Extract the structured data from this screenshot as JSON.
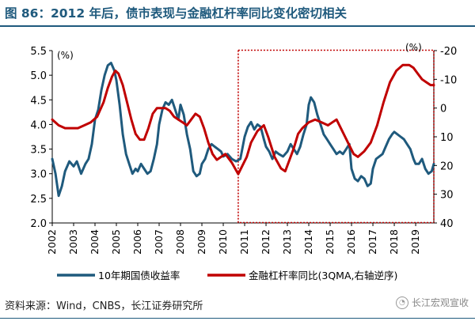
{
  "title": "图 86：2012 年后，债市表现与金融杠杆率同比变化密切相关",
  "source": "资料来源：Wind，CNBS，长江证券研究所",
  "watermark": "长江宏观宣收",
  "colors": {
    "blue": "#1f5a7d",
    "red": "#c00000",
    "title": "#1f5a7d",
    "highlight": "#c00000"
  },
  "chart_data": {
    "type": "line",
    "left_unit": "(%)",
    "right_unit": "(%)",
    "ylim_left": [
      2.0,
      5.5
    ],
    "yticks_left": [
      "2.0",
      "2.5",
      "3.0",
      "3.5",
      "4.0",
      "4.5",
      "5.0",
      "5.5"
    ],
    "ylim_right_reversed": [
      -20,
      40
    ],
    "yticks_right": [
      "-20",
      "-10",
      "0",
      "10",
      "20",
      "30",
      "40"
    ],
    "xlim": [
      2002.0,
      2019.85
    ],
    "xtick_labels": [
      "2002",
      "2003",
      "2004",
      "2005",
      "2006",
      "2007",
      "2008",
      "2009",
      "2010",
      "2011",
      "2012",
      "2013",
      "2014",
      "2015",
      "2016",
      "2017",
      "2018",
      "2019"
    ],
    "highlight_box_x": [
      2010.7,
      2019.85
    ],
    "series": [
      {
        "name": "10年期国债收益率",
        "axis": "left",
        "x": [
          2002.0,
          2002.15,
          2002.3,
          2002.45,
          2002.6,
          2002.8,
          2003.0,
          2003.15,
          2003.35,
          2003.55,
          2003.7,
          2003.85,
          2004.0,
          2004.15,
          2004.3,
          2004.45,
          2004.6,
          2004.75,
          2004.9,
          2005.0,
          2005.15,
          2005.3,
          2005.45,
          2005.6,
          2005.75,
          2005.9,
          2006.0,
          2006.15,
          2006.3,
          2006.45,
          2006.6,
          2006.75,
          2006.9,
          2007.0,
          2007.15,
          2007.3,
          2007.45,
          2007.6,
          2007.75,
          2007.9,
          2008.0,
          2008.15,
          2008.3,
          2008.45,
          2008.6,
          2008.75,
          2008.9,
          2009.0,
          2009.15,
          2009.3,
          2009.45,
          2009.6,
          2009.75,
          2009.9,
          2010.0,
          2010.2,
          2010.4,
          2010.6,
          2010.8,
          2011.0,
          2011.15,
          2011.3,
          2011.45,
          2011.6,
          2011.75,
          2011.9,
          2012.0,
          2012.15,
          2012.3,
          2012.45,
          2012.6,
          2012.8,
          2013.0,
          2013.15,
          2013.3,
          2013.45,
          2013.6,
          2013.75,
          2013.9,
          2014.0,
          2014.1,
          2014.25,
          2014.4,
          2014.55,
          2014.7,
          2014.85,
          2015.0,
          2015.15,
          2015.3,
          2015.45,
          2015.6,
          2015.75,
          2015.9,
          2016.0,
          2016.15,
          2016.3,
          2016.45,
          2016.6,
          2016.75,
          2016.9,
          2017.0,
          2017.15,
          2017.3,
          2017.45,
          2017.6,
          2017.75,
          2017.9,
          2018.0,
          2018.15,
          2018.3,
          2018.45,
          2018.6,
          2018.75,
          2018.9,
          2019.0,
          2019.15,
          2019.3,
          2019.45,
          2019.6,
          2019.75,
          2019.85
        ],
        "values": [
          3.3,
          3.0,
          2.55,
          2.75,
          3.05,
          3.25,
          3.15,
          3.25,
          3.0,
          3.2,
          3.3,
          3.6,
          4.1,
          4.3,
          4.7,
          5.0,
          5.2,
          5.25,
          5.1,
          4.9,
          4.4,
          3.8,
          3.4,
          3.2,
          3.0,
          3.1,
          3.05,
          3.2,
          3.1,
          3.0,
          3.05,
          3.3,
          3.6,
          4.0,
          4.3,
          4.45,
          4.4,
          4.5,
          4.3,
          4.1,
          4.4,
          4.2,
          3.8,
          3.5,
          3.05,
          2.95,
          3.0,
          3.2,
          3.3,
          3.5,
          3.6,
          3.55,
          3.5,
          3.45,
          3.35,
          3.4,
          3.3,
          3.25,
          3.3,
          3.75,
          3.95,
          4.05,
          3.9,
          4.0,
          3.95,
          3.7,
          3.55,
          3.45,
          3.3,
          3.45,
          3.4,
          3.35,
          3.45,
          3.6,
          3.5,
          3.4,
          3.55,
          3.8,
          4.0,
          4.4,
          4.55,
          4.45,
          4.2,
          4.0,
          3.8,
          3.7,
          3.6,
          3.5,
          3.4,
          3.45,
          3.4,
          3.5,
          3.6,
          3.1,
          2.9,
          2.85,
          2.95,
          2.9,
          2.75,
          2.8,
          3.1,
          3.3,
          3.35,
          3.4,
          3.55,
          3.7,
          3.8,
          3.85,
          3.8,
          3.75,
          3.7,
          3.6,
          3.5,
          3.3,
          3.2,
          3.2,
          3.3,
          3.1,
          3.0,
          3.05,
          3.2
        ]
      },
      {
        "name": "金融杠杆率同比(3QMA,右轴逆序)",
        "axis": "right",
        "x": [
          2002.0,
          2002.3,
          2002.6,
          2002.9,
          2003.2,
          2003.5,
          2003.8,
          2004.1,
          2004.4,
          2004.6,
          2004.8,
          2004.95,
          2005.1,
          2005.3,
          2005.5,
          2005.7,
          2005.9,
          2006.1,
          2006.3,
          2006.5,
          2006.7,
          2006.9,
          2007.1,
          2007.3,
          2007.5,
          2007.7,
          2007.9,
          2008.1,
          2008.3,
          2008.5,
          2008.7,
          2008.9,
          2009.1,
          2009.3,
          2009.5,
          2009.7,
          2009.9,
          2010.1,
          2010.4,
          2010.7,
          2010.9,
          2011.1,
          2011.3,
          2011.6,
          2011.9,
          2012.1,
          2012.4,
          2012.7,
          2012.9,
          2013.1,
          2013.3,
          2013.5,
          2013.7,
          2014.0,
          2014.3,
          2014.6,
          2014.9,
          2015.1,
          2015.3,
          2015.5,
          2015.7,
          2015.9,
          2016.1,
          2016.3,
          2016.6,
          2016.9,
          2017.2,
          2017.5,
          2017.8,
          2018.1,
          2018.4,
          2018.7,
          2018.9,
          2019.1,
          2019.3,
          2019.5,
          2019.7,
          2019.85
        ],
        "values": [
          4,
          6,
          7,
          7,
          7,
          6,
          5,
          3,
          -2,
          -7,
          -11,
          -13,
          -12,
          -8,
          -2,
          4,
          9,
          11,
          11,
          7,
          2,
          0,
          0,
          0,
          1,
          3,
          4,
          5,
          6,
          4,
          2,
          3,
          7,
          12,
          16,
          18,
          17,
          16,
          19,
          23,
          20,
          17,
          12,
          8,
          6,
          10,
          17,
          21,
          22,
          18,
          14,
          9,
          7,
          5,
          4,
          5,
          6,
          5,
          4,
          7,
          10,
          13,
          16,
          17,
          15,
          12,
          6,
          -2,
          -9,
          -13,
          -15,
          -15,
          -14,
          -12,
          -10,
          -9,
          -8,
          -8
        ]
      }
    ]
  },
  "legend": {
    "blue_label": "10年期国债收益率",
    "red_label": "金融杠杆率同比(3QMA,右轴逆序)"
  }
}
